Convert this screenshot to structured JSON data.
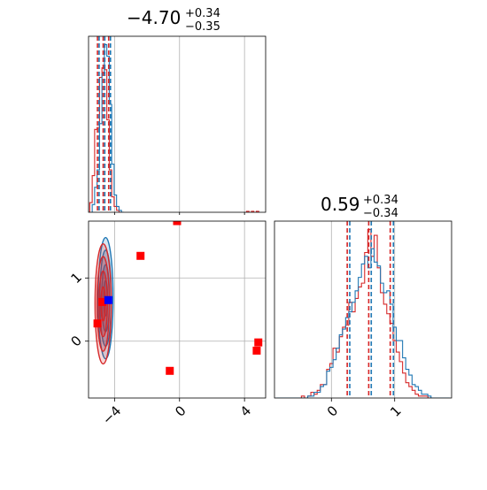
{
  "colors": {
    "red": "#d62728",
    "blue": "#1f77b4",
    "marker_red": "#ff0000",
    "marker_blue": "#0000ff",
    "grid": "#b0b0b0"
  },
  "chart_data": {
    "type": "corner",
    "parameters": [
      {
        "median_text": "−4.70",
        "plus_text": "+0.34",
        "minus_text": "−0.35",
        "range": [
          -5.6,
          5.3
        ],
        "ticks": [
          -4,
          0,
          4
        ],
        "tick_labels": [
          "−4",
          "0",
          "4"
        ],
        "quantile_lines": {
          "red": [
            -5.05,
            -4.7,
            -4.36
          ],
          "blue": [
            -4.95,
            -4.6,
            -4.25
          ]
        }
      },
      {
        "median_text": "0.59",
        "plus_text": "+0.34",
        "minus_text": "−0.34",
        "range": [
          -0.9,
          1.9
        ],
        "ticks": [
          0,
          1
        ],
        "tick_labels": [
          "0",
          "1"
        ],
        "quantile_lines": {
          "red": [
            0.25,
            0.59,
            0.93
          ],
          "blue": [
            0.29,
            0.63,
            0.98
          ]
        }
      }
    ],
    "histograms_1d": [
      {
        "param": 0,
        "series": [
          {
            "name": "red",
            "bin_centers": [
              -5.45,
              -5.3,
              -5.15,
              -5.0,
              -4.85,
              -4.7,
              -4.55,
              -4.4,
              -4.25,
              -4.1,
              -3.95,
              -3.8,
              -3.65,
              4.2,
              4.5,
              4.8
            ],
            "counts": [
              0.05,
              0.19,
              0.43,
              0.44,
              0.7,
              0.75,
              0.74,
              0.48,
              0.22,
              0.08,
              0.03,
              0.01,
              0.0,
              0.005,
              0.005,
              0.005
            ]
          },
          {
            "name": "blue",
            "bin_centers": [
              -5.3,
              -5.15,
              -5.0,
              -4.85,
              -4.7,
              -4.55,
              -4.4,
              -4.25,
              -4.1,
              -3.95,
              -3.8,
              -3.65,
              -3.5
            ],
            "counts": [
              0.04,
              0.13,
              0.22,
              0.46,
              0.72,
              0.87,
              0.81,
              0.56,
              0.25,
              0.09,
              0.03,
              0.01,
              0.0
            ]
          }
        ]
      },
      {
        "param": 1,
        "series": [
          {
            "name": "red",
            "bin_centers": [
              -0.85,
              -0.8,
              -0.75,
              -0.7,
              -0.65,
              -0.6,
              -0.55,
              -0.5,
              -0.45,
              -0.4,
              -0.35,
              -0.3,
              -0.25,
              -0.2,
              -0.15,
              -0.1,
              -0.05,
              0.0,
              0.05,
              0.1,
              0.15,
              0.2,
              0.25,
              0.3,
              0.35,
              0.4,
              0.45,
              0.5,
              0.55,
              0.6,
              0.65,
              0.7,
              0.75,
              0.8,
              0.85,
              0.9,
              0.95,
              1.0,
              1.05,
              1.1,
              1.15,
              1.2,
              1.25,
              1.3,
              1.35,
              1.4,
              1.45,
              1.5,
              1.55,
              1.6,
              1.65,
              1.7,
              1.75,
              1.8,
              1.85
            ],
            "counts": [
              0.0,
              0.0,
              0.0,
              0.0,
              0.0,
              0.0,
              0.0,
              0.0,
              0.01,
              0.0,
              0.01,
              0.03,
              0.02,
              0.04,
              0.07,
              0.07,
              0.15,
              0.18,
              0.26,
              0.24,
              0.32,
              0.37,
              0.38,
              0.5,
              0.45,
              0.52,
              0.58,
              0.6,
              0.76,
              0.88,
              0.74,
              0.85,
              0.68,
              0.55,
              0.49,
              0.44,
              0.39,
              0.3,
              0.24,
              0.19,
              0.13,
              0.08,
              0.06,
              0.04,
              0.02,
              0.01,
              0.01,
              0.01,
              0.0,
              0.0,
              0.0,
              0.0,
              0.0,
              0.0,
              0.0
            ]
          },
          {
            "name": "blue",
            "bin_centers": [
              -0.85,
              -0.8,
              -0.75,
              -0.7,
              -0.65,
              -0.6,
              -0.55,
              -0.5,
              -0.45,
              -0.4,
              -0.35,
              -0.3,
              -0.25,
              -0.2,
              -0.15,
              -0.1,
              -0.05,
              0.0,
              0.05,
              0.1,
              0.15,
              0.2,
              0.25,
              0.3,
              0.35,
              0.4,
              0.45,
              0.5,
              0.55,
              0.6,
              0.65,
              0.7,
              0.75,
              0.8,
              0.85,
              0.9,
              0.95,
              1.0,
              1.05,
              1.1,
              1.15,
              1.2,
              1.25,
              1.3,
              1.35,
              1.4,
              1.45,
              1.5,
              1.55,
              1.6,
              1.65,
              1.7,
              1.75,
              1.8,
              1.85
            ],
            "counts": [
              0.0,
              0.0,
              0.0,
              0.0,
              0.0,
              0.0,
              0.0,
              0.0,
              0.0,
              0.0,
              0.01,
              0.01,
              0.03,
              0.03,
              0.06,
              0.07,
              0.14,
              0.16,
              0.2,
              0.26,
              0.33,
              0.36,
              0.42,
              0.45,
              0.5,
              0.56,
              0.63,
              0.7,
              0.74,
              0.68,
              0.78,
              0.71,
              0.69,
              0.6,
              0.55,
              0.56,
              0.49,
              0.37,
              0.3,
              0.3,
              0.21,
              0.15,
              0.12,
              0.07,
              0.06,
              0.04,
              0.02,
              0.02,
              0.01,
              0.0,
              0.0,
              0.0,
              0.0,
              0.0,
              0.0
            ]
          }
        ]
      }
    ],
    "contours_2d": {
      "x_param": 0,
      "y_param": 1,
      "series": [
        {
          "name": "red",
          "center": [
            -4.7,
            0.59
          ],
          "levels": [
            {
              "sx": 0.13,
              "sy": 0.27
            },
            {
              "sx": 0.26,
              "sy": 0.52
            },
            {
              "sx": 0.38,
              "sy": 0.75
            },
            {
              "sx": 0.5,
              "sy": 0.95
            }
          ]
        },
        {
          "name": "blue",
          "center": [
            -4.55,
            0.68
          ],
          "levels": [
            {
              "sx": 0.12,
              "sy": 0.28
            },
            {
              "sx": 0.24,
              "sy": 0.53
            },
            {
              "sx": 0.35,
              "sy": 0.76
            },
            {
              "sx": 0.46,
              "sy": 0.96
            }
          ]
        }
      ]
    },
    "markers_2d": [
      {
        "color": "red",
        "x": -0.15,
        "y": 1.9
      },
      {
        "color": "red",
        "x": -2.4,
        "y": 1.35
      },
      {
        "color": "red",
        "x": -5.05,
        "y": 0.28
      },
      {
        "color": "red",
        "x": -4.75,
        "y": 0.62
      },
      {
        "color": "red",
        "x": -0.6,
        "y": -0.47
      },
      {
        "color": "red",
        "x": 4.85,
        "y": -0.02
      },
      {
        "color": "red",
        "x": 4.75,
        "y": -0.15
      },
      {
        "color": "blue",
        "x": -4.38,
        "y": 0.65
      }
    ],
    "grid": true
  }
}
